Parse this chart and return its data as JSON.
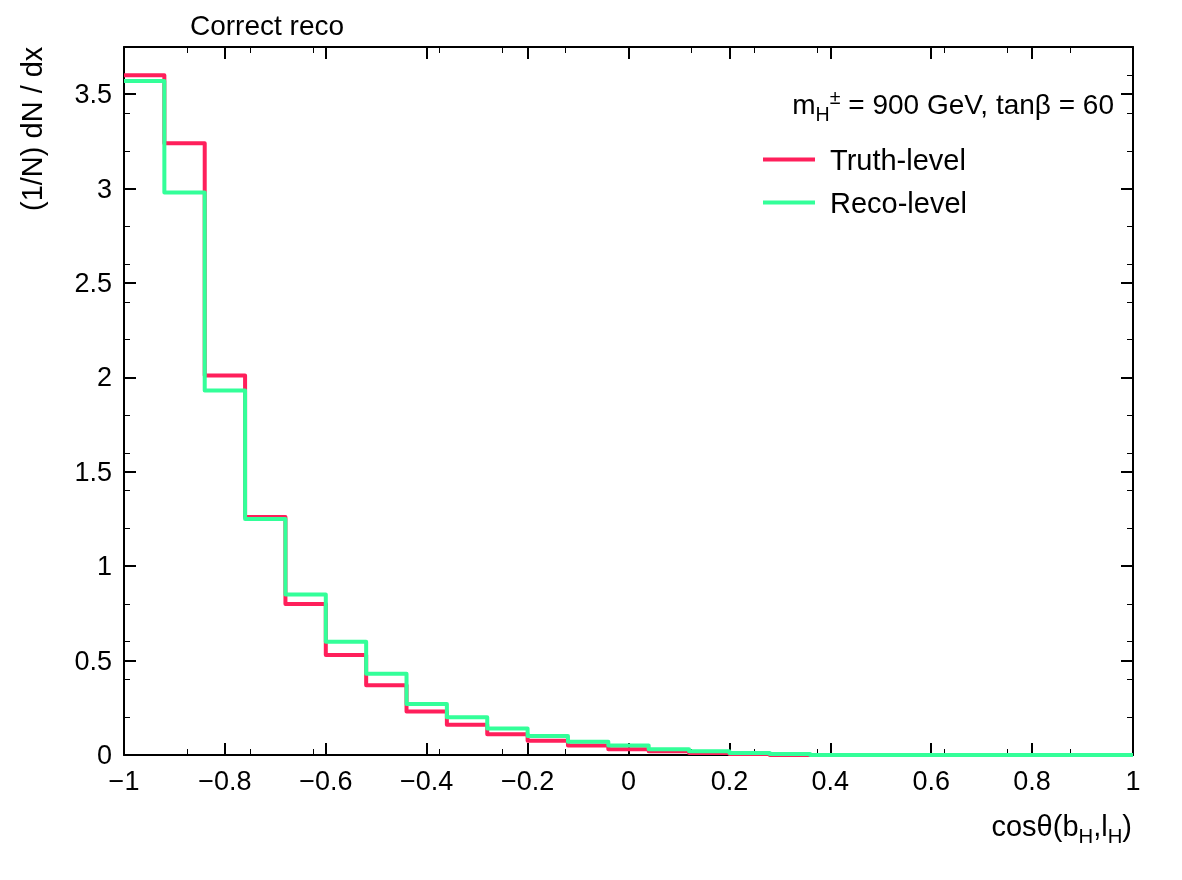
{
  "chart_data": {
    "type": "histogram",
    "title": "Correct reco",
    "xlabel": "cosθ(b$_{H}$,l$_{H}$)",
    "ylabel": "(1/N) dN / dx",
    "annotations": [
      "m$_{H}$$^{±}$ = 900 GeV,  tanβ = 60"
    ],
    "bins": [
      -1,
      -0.92,
      -0.84,
      -0.76,
      -0.68,
      -0.6,
      -0.52,
      -0.44,
      -0.36,
      -0.28,
      -0.2,
      -0.12,
      -0.04,
      0.04,
      0.12,
      0.2,
      0.28,
      0.36,
      0.44,
      0.52,
      0.6,
      0.68,
      0.76,
      0.84,
      0.92,
      1
    ],
    "series": [
      {
        "name": "Truth-level",
        "color": "#ff1f5b",
        "values": [
          3.6,
          3.24,
          2.01,
          1.26,
          0.8,
          0.53,
          0.37,
          0.23,
          0.16,
          0.11,
          0.075,
          0.05,
          0.03,
          0.02,
          0.01,
          0.005,
          0,
          0,
          0,
          0,
          0,
          0,
          0,
          0,
          0
        ]
      },
      {
        "name": "Reco-level",
        "color": "#33ff99",
        "values": [
          3.57,
          2.98,
          1.93,
          1.25,
          0.85,
          0.6,
          0.43,
          0.27,
          0.2,
          0.14,
          0.1,
          0.07,
          0.05,
          0.03,
          0.02,
          0.01,
          0.005,
          0,
          0,
          0,
          0,
          0,
          0,
          0,
          0
        ]
      }
    ],
    "xlim": [
      -1,
      1
    ],
    "xticks": [
      -1,
      -0.8,
      -0.6,
      -0.4,
      -0.2,
      0,
      0.2,
      0.4,
      0.6,
      0.8,
      1
    ],
    "ylim": [
      0,
      3.75
    ],
    "yticks": [
      0,
      0.5,
      1,
      1.5,
      2,
      2.5,
      3,
      3.5
    ],
    "legend": "top right",
    "grid": false
  }
}
